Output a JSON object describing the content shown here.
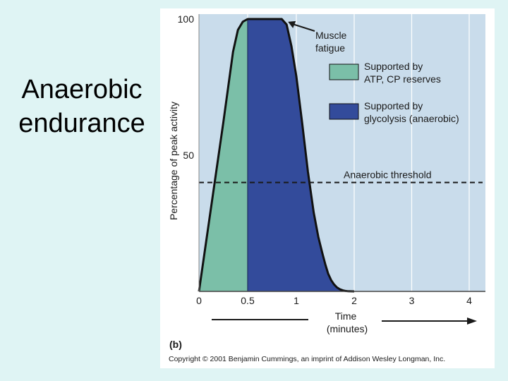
{
  "slide": {
    "title_line1": "Anaerobic",
    "title_line2": "endurance"
  },
  "figure": {
    "panel_label": "(b)",
    "copyright": "Copyright © 2001 Benjamin Cummings, an imprint of Addison Wesley Longman, Inc."
  },
  "colors": {
    "plot_background": "#c9dceb",
    "atp_cp_fill": "#7bbfa8",
    "glycolysis_fill": "#334b9b",
    "outline": "#111111",
    "gridline": "#ffffff"
  },
  "chart_data": {
    "type": "area",
    "ylabel": "Percentage of peak activity",
    "xlabel_line1": "Time",
    "xlabel_line2": "(minutes)",
    "xlim": [
      0,
      4.2
    ],
    "ylim": [
      0,
      100
    ],
    "x_ticks": [
      {
        "value": 0,
        "label": "0"
      },
      {
        "value": 0.5,
        "label": "0.5"
      },
      {
        "value": 1,
        "label": "1"
      },
      {
        "value": 2,
        "label": "2"
      },
      {
        "value": 3,
        "label": "3"
      },
      {
        "value": 4,
        "label": "4"
      }
    ],
    "y_ticks": [
      {
        "value": 50,
        "label": "50"
      },
      {
        "value": 100,
        "label": "100"
      }
    ],
    "grid": true,
    "activity_curve": {
      "x": [
        0,
        0.25,
        0.35,
        0.4,
        0.45,
        0.5,
        0.6,
        0.75,
        0.8,
        0.85,
        0.9,
        0.95,
        1.0,
        1.1,
        1.2,
        1.3,
        1.38,
        1.45,
        1.5,
        1.55,
        1.6,
        1.65,
        1.7,
        1.75,
        1.8,
        1.85,
        1.9,
        2.0
      ],
      "y": [
        0,
        62,
        88,
        96,
        99,
        100,
        100,
        100,
        100,
        100,
        98,
        90,
        79,
        62,
        44,
        29,
        20,
        14,
        10,
        6.5,
        4.2,
        2.6,
        1.5,
        0.8,
        0.4,
        0.15,
        0.05,
        0
      ]
    },
    "series": [
      {
        "name": "Supported by ATP, CP reserves",
        "legend_line1": "Supported by",
        "legend_line2": "ATP, CP reserves",
        "x_range": [
          0,
          0.5
        ]
      },
      {
        "name": "Supported by glycolysis (anaerobic)",
        "legend_line1": "Supported by",
        "legend_line2": "glycolysis (anaerobic)",
        "x_range": [
          0.5,
          2.0
        ]
      }
    ],
    "threshold": {
      "label": "Anaerobic threshold",
      "y": 40
    },
    "annotation": {
      "line1": "Muscle",
      "line2": "fatigue",
      "x": 0.9,
      "y": 99
    }
  }
}
